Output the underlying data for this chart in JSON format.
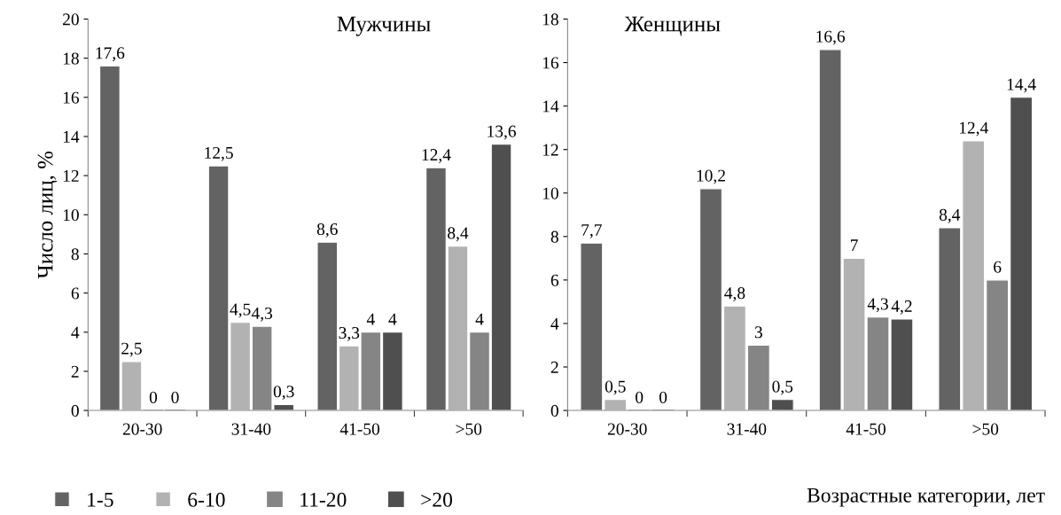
{
  "chart_data": [
    {
      "type": "bar",
      "title": "Мужчины",
      "ylabel": "Число лиц, %",
      "categories": [
        "20-30",
        "31-40",
        "41-50",
        ">50"
      ],
      "ylim": [
        0,
        20
      ],
      "yticks": [
        0,
        2,
        4,
        6,
        8,
        10,
        12,
        14,
        16,
        18,
        20
      ],
      "legend": "bottom",
      "grid": false,
      "series": [
        {
          "name": "1-5",
          "color": "#636363",
          "values": [
            17.6,
            12.5,
            8.6,
            12.4
          ],
          "value_labels": [
            "17,6",
            "12,5",
            "8,6",
            "12,4"
          ]
        },
        {
          "name": "6-10",
          "color": "#b2b2b2",
          "values": [
            2.5,
            4.5,
            3.3,
            8.4
          ],
          "value_labels": [
            "2,5",
            "4,5",
            "3,3",
            "8,4"
          ]
        },
        {
          "name": "11-20",
          "color": "#858585",
          "values": [
            0,
            4.3,
            4,
            4
          ],
          "value_labels": [
            "0",
            "4,3",
            "4",
            "4"
          ]
        },
        {
          "name": ">20",
          "color": "#4f4f4f",
          "values": [
            0,
            0.3,
            4,
            13.6
          ],
          "value_labels": [
            "0",
            "0,3",
            "4",
            "13,6"
          ]
        }
      ]
    },
    {
      "type": "bar",
      "title": "Женщины",
      "xlabel": "Возрастные категории, лет",
      "categories": [
        "20-30",
        "31-40",
        "41-50",
        ">50"
      ],
      "ylim": [
        0,
        18
      ],
      "yticks": [
        0,
        2,
        4,
        6,
        8,
        10,
        12,
        14,
        16,
        18
      ],
      "legend": false,
      "grid": false,
      "series": [
        {
          "color": "#636363",
          "values": [
            7.7,
            10.2,
            16.6,
            8.4
          ],
          "value_labels": [
            "7,7",
            "10,2",
            "16,6",
            "8,4"
          ]
        },
        {
          "color": "#b2b2b2",
          "values": [
            0.5,
            4.8,
            7,
            12.4
          ],
          "value_labels": [
            "0,5",
            "4,8",
            "7",
            "12,4"
          ]
        },
        {
          "color": "#858585",
          "values": [
            0,
            3,
            4.3,
            6
          ],
          "value_labels": [
            "0",
            "3",
            "4,3",
            "6"
          ]
        },
        {
          "color": "#4f4f4f",
          "values": [
            0,
            0.5,
            4.2,
            14.4
          ],
          "value_labels": [
            "0",
            "0,5",
            "4,2",
            "14,4"
          ]
        }
      ]
    }
  ]
}
